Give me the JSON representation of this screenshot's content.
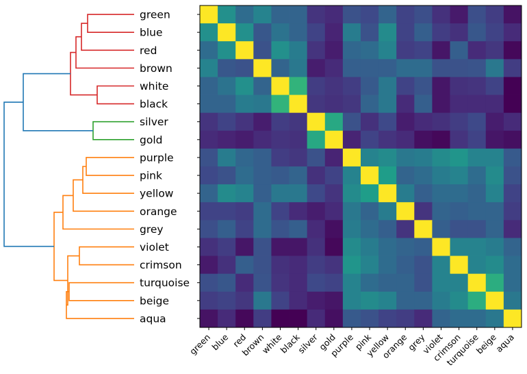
{
  "chart_data": {
    "type": "heatmap",
    "title": "",
    "xlabel": "",
    "ylabel": "",
    "labels": [
      "green",
      "blue",
      "red",
      "brown",
      "white",
      "black",
      "silver",
      "gold",
      "purple",
      "pink",
      "yellow",
      "orange",
      "grey",
      "violet",
      "crimson",
      "turquoise",
      "beige",
      "aqua"
    ],
    "colormap": "viridis",
    "value_range": [
      0,
      1
    ],
    "values": [
      [
        1.0,
        0.5,
        0.35,
        0.45,
        0.32,
        0.32,
        0.15,
        0.12,
        0.25,
        0.22,
        0.32,
        0.2,
        0.24,
        0.14,
        0.07,
        0.24,
        0.18,
        0.05
      ],
      [
        0.5,
        1.0,
        0.5,
        0.27,
        0.38,
        0.32,
        0.2,
        0.1,
        0.42,
        0.25,
        0.48,
        0.2,
        0.3,
        0.18,
        0.14,
        0.27,
        0.2,
        0.12
      ],
      [
        0.35,
        0.5,
        1.0,
        0.25,
        0.5,
        0.42,
        0.15,
        0.08,
        0.33,
        0.35,
        0.45,
        0.18,
        0.2,
        0.06,
        0.3,
        0.12,
        0.16,
        0.02
      ],
      [
        0.45,
        0.27,
        0.25,
        1.0,
        0.32,
        0.4,
        0.08,
        0.12,
        0.3,
        0.3,
        0.3,
        0.35,
        0.35,
        0.25,
        0.25,
        0.26,
        0.4,
        0.18
      ],
      [
        0.32,
        0.38,
        0.5,
        0.32,
        1.0,
        0.65,
        0.18,
        0.15,
        0.18,
        0.28,
        0.4,
        0.2,
        0.26,
        0.06,
        0.14,
        0.15,
        0.2,
        0.0
      ],
      [
        0.32,
        0.32,
        0.42,
        0.4,
        0.65,
        1.0,
        0.16,
        0.14,
        0.16,
        0.32,
        0.4,
        0.12,
        0.3,
        0.06,
        0.12,
        0.12,
        0.12,
        0.0
      ],
      [
        0.15,
        0.2,
        0.15,
        0.08,
        0.18,
        0.16,
        1.0,
        0.6,
        0.25,
        0.14,
        0.22,
        0.08,
        0.12,
        0.14,
        0.18,
        0.22,
        0.08,
        0.12
      ],
      [
        0.12,
        0.1,
        0.08,
        0.12,
        0.15,
        0.14,
        0.6,
        1.0,
        0.1,
        0.2,
        0.15,
        0.12,
        0.04,
        0.02,
        0.15,
        0.2,
        0.06,
        0.04
      ],
      [
        0.25,
        0.42,
        0.33,
        0.3,
        0.18,
        0.16,
        0.25,
        0.1,
        1.0,
        0.45,
        0.48,
        0.4,
        0.42,
        0.48,
        0.52,
        0.45,
        0.45,
        0.28
      ],
      [
        0.22,
        0.25,
        0.35,
        0.3,
        0.28,
        0.32,
        0.14,
        0.2,
        0.45,
        1.0,
        0.55,
        0.32,
        0.35,
        0.42,
        0.45,
        0.35,
        0.48,
        0.25
      ],
      [
        0.32,
        0.48,
        0.45,
        0.3,
        0.4,
        0.4,
        0.22,
        0.15,
        0.48,
        0.55,
        1.0,
        0.42,
        0.3,
        0.35,
        0.35,
        0.32,
        0.45,
        0.2
      ],
      [
        0.2,
        0.2,
        0.18,
        0.35,
        0.2,
        0.12,
        0.08,
        0.12,
        0.4,
        0.32,
        0.42,
        1.0,
        0.15,
        0.32,
        0.3,
        0.32,
        0.32,
        0.18
      ],
      [
        0.24,
        0.3,
        0.2,
        0.35,
        0.26,
        0.3,
        0.12,
        0.04,
        0.42,
        0.35,
        0.3,
        0.15,
        1.0,
        0.3,
        0.25,
        0.25,
        0.32,
        0.12
      ],
      [
        0.14,
        0.18,
        0.06,
        0.25,
        0.06,
        0.06,
        0.14,
        0.02,
        0.48,
        0.42,
        0.35,
        0.32,
        0.3,
        1.0,
        0.45,
        0.45,
        0.42,
        0.32
      ],
      [
        0.07,
        0.14,
        0.3,
        0.25,
        0.14,
        0.12,
        0.18,
        0.15,
        0.52,
        0.45,
        0.35,
        0.3,
        0.25,
        0.45,
        1.0,
        0.45,
        0.48,
        0.35
      ],
      [
        0.24,
        0.27,
        0.12,
        0.26,
        0.15,
        0.12,
        0.22,
        0.2,
        0.45,
        0.35,
        0.32,
        0.32,
        0.25,
        0.45,
        0.45,
        1.0,
        0.62,
        0.35
      ],
      [
        0.18,
        0.2,
        0.16,
        0.4,
        0.2,
        0.12,
        0.08,
        0.06,
        0.45,
        0.48,
        0.45,
        0.32,
        0.32,
        0.42,
        0.48,
        0.62,
        1.0,
        0.4
      ],
      [
        0.05,
        0.12,
        0.02,
        0.18,
        0.0,
        0.0,
        0.12,
        0.04,
        0.28,
        0.25,
        0.2,
        0.18,
        0.12,
        0.32,
        0.35,
        0.35,
        0.4,
        1.0
      ]
    ],
    "dendrogram": {
      "orientation": "left",
      "clusters": [
        {
          "members": [
            "green",
            "blue",
            "red",
            "brown",
            "white",
            "black"
          ],
          "color": "#d62728"
        },
        {
          "members": [
            "silver",
            "gold"
          ],
          "color": "#2ca02c"
        },
        {
          "members": [
            "purple",
            "pink",
            "yellow",
            "orange",
            "grey",
            "violet",
            "crimson",
            "turquoise",
            "beige",
            "aqua"
          ],
          "color": "#ff7f0e"
        }
      ],
      "root_color": "#1f77b4"
    }
  }
}
